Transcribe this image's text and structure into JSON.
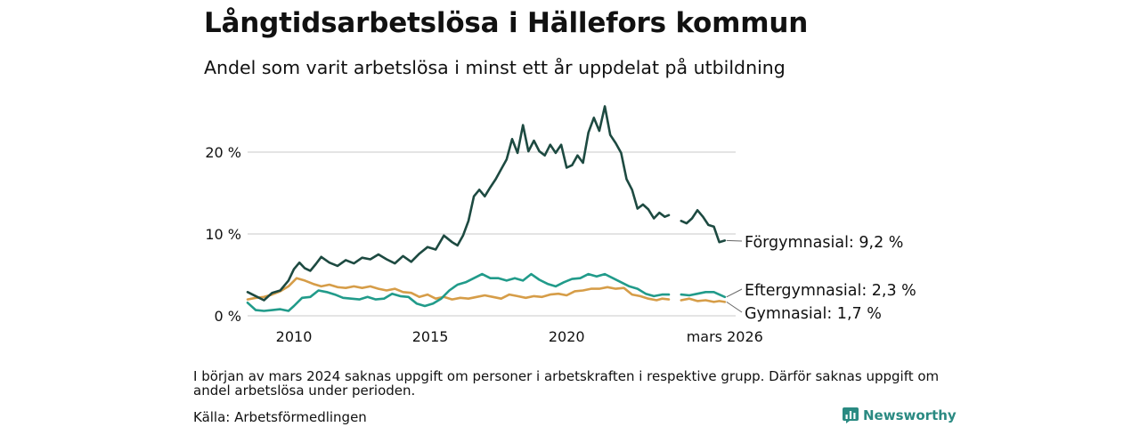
{
  "header": {
    "title": "Långtidsarbetslösa i Hällefors kommun",
    "subtitle": "Andel som varit arbetslösa i minst ett år uppdelat på utbildning"
  },
  "footer": {
    "note": "I början av mars 2024 saknas uppgift om personer i arbetskraften i respektive grupp. Därför saknas uppgift om andel arbetslösa under perioden.",
    "source": "Källa: Arbetsförmedlingen",
    "brand": "Newsworthy"
  },
  "colors": {
    "forgymnasial": "#1d4a41",
    "eftergymnasial": "#219b8a",
    "gymnasial": "#d69d48",
    "grid": "#dcdcdc",
    "brand": "#2a8a82"
  },
  "chart_data": {
    "type": "line",
    "x_range": [
      2008.3,
      2026.2
    ],
    "ylim": [
      0,
      25.5
    ],
    "yticks": [
      {
        "value": 0,
        "label": "0 %"
      },
      {
        "value": 10,
        "label": "10 %"
      },
      {
        "value": 20,
        "label": "20 %"
      }
    ],
    "xticks": [
      {
        "value": 2010,
        "label": "2010"
      },
      {
        "value": 2015,
        "label": "2015"
      },
      {
        "value": 2020,
        "label": "2020"
      },
      {
        "value": 2025.8,
        "label": "mars 2026"
      }
    ],
    "gap": [
      2023.75,
      2024.2
    ],
    "series": [
      {
        "name": "Förgymnasial",
        "color_key": "forgymnasial",
        "end_label": "Förgymnasial: 9,2 %",
        "points": [
          [
            2008.3,
            2.9
          ],
          [
            2008.6,
            2.4
          ],
          [
            2008.9,
            1.9
          ],
          [
            2009.2,
            2.8
          ],
          [
            2009.5,
            3.1
          ],
          [
            2009.8,
            4.3
          ],
          [
            2010.0,
            5.7
          ],
          [
            2010.2,
            6.5
          ],
          [
            2010.4,
            5.8
          ],
          [
            2010.6,
            5.5
          ],
          [
            2010.8,
            6.3
          ],
          [
            2011.0,
            7.2
          ],
          [
            2011.3,
            6.5
          ],
          [
            2011.6,
            6.1
          ],
          [
            2011.9,
            6.8
          ],
          [
            2012.2,
            6.4
          ],
          [
            2012.5,
            7.1
          ],
          [
            2012.8,
            6.9
          ],
          [
            2013.1,
            7.5
          ],
          [
            2013.4,
            6.9
          ],
          [
            2013.7,
            6.4
          ],
          [
            2014.0,
            7.3
          ],
          [
            2014.3,
            6.6
          ],
          [
            2014.6,
            7.6
          ],
          [
            2014.9,
            8.4
          ],
          [
            2015.2,
            8.1
          ],
          [
            2015.5,
            9.8
          ],
          [
            2015.8,
            9.0
          ],
          [
            2016.0,
            8.6
          ],
          [
            2016.2,
            9.8
          ],
          [
            2016.4,
            11.6
          ],
          [
            2016.6,
            14.6
          ],
          [
            2016.8,
            15.4
          ],
          [
            2017.0,
            14.6
          ],
          [
            2017.2,
            15.7
          ],
          [
            2017.4,
            16.7
          ],
          [
            2017.6,
            17.9
          ],
          [
            2017.8,
            19.1
          ],
          [
            2018.0,
            21.6
          ],
          [
            2018.2,
            19.9
          ],
          [
            2018.4,
            23.3
          ],
          [
            2018.6,
            20.1
          ],
          [
            2018.8,
            21.4
          ],
          [
            2019.0,
            20.1
          ],
          [
            2019.2,
            19.6
          ],
          [
            2019.4,
            20.9
          ],
          [
            2019.6,
            19.9
          ],
          [
            2019.8,
            20.9
          ],
          [
            2020.0,
            18.1
          ],
          [
            2020.2,
            18.4
          ],
          [
            2020.4,
            19.6
          ],
          [
            2020.6,
            18.7
          ],
          [
            2020.8,
            22.4
          ],
          [
            2021.0,
            24.2
          ],
          [
            2021.2,
            22.6
          ],
          [
            2021.4,
            25.6
          ],
          [
            2021.6,
            22.1
          ],
          [
            2021.8,
            21.1
          ],
          [
            2022.0,
            19.9
          ],
          [
            2022.2,
            16.7
          ],
          [
            2022.4,
            15.4
          ],
          [
            2022.6,
            13.1
          ],
          [
            2022.8,
            13.6
          ],
          [
            2023.0,
            13.0
          ],
          [
            2023.2,
            11.9
          ],
          [
            2023.4,
            12.6
          ],
          [
            2023.6,
            12.1
          ],
          [
            2023.75,
            12.3
          ],
          [
            2024.2,
            11.6
          ],
          [
            2024.4,
            11.3
          ],
          [
            2024.6,
            11.9
          ],
          [
            2024.8,
            12.9
          ],
          [
            2025.0,
            12.1
          ],
          [
            2025.2,
            11.1
          ],
          [
            2025.4,
            10.9
          ],
          [
            2025.6,
            9.0
          ],
          [
            2025.8,
            9.2
          ]
        ]
      },
      {
        "name": "Eftergymnasial",
        "color_key": "eftergymnasial",
        "end_label": "Eftergymnasial: 2,3 %",
        "points": [
          [
            2008.3,
            1.6
          ],
          [
            2008.6,
            0.7
          ],
          [
            2008.9,
            0.6
          ],
          [
            2009.2,
            0.7
          ],
          [
            2009.5,
            0.8
          ],
          [
            2009.8,
            0.6
          ],
          [
            2010.0,
            1.2
          ],
          [
            2010.3,
            2.2
          ],
          [
            2010.6,
            2.3
          ],
          [
            2010.9,
            3.1
          ],
          [
            2011.2,
            2.9
          ],
          [
            2011.5,
            2.6
          ],
          [
            2011.8,
            2.2
          ],
          [
            2012.1,
            2.1
          ],
          [
            2012.4,
            2.0
          ],
          [
            2012.7,
            2.3
          ],
          [
            2013.0,
            2.0
          ],
          [
            2013.3,
            2.1
          ],
          [
            2013.6,
            2.7
          ],
          [
            2013.9,
            2.4
          ],
          [
            2014.2,
            2.3
          ],
          [
            2014.5,
            1.5
          ],
          [
            2014.8,
            1.2
          ],
          [
            2015.1,
            1.5
          ],
          [
            2015.4,
            2.1
          ],
          [
            2015.7,
            3.1
          ],
          [
            2016.0,
            3.8
          ],
          [
            2016.3,
            4.1
          ],
          [
            2016.6,
            4.6
          ],
          [
            2016.9,
            5.1
          ],
          [
            2017.2,
            4.6
          ],
          [
            2017.5,
            4.6
          ],
          [
            2017.8,
            4.3
          ],
          [
            2018.1,
            4.6
          ],
          [
            2018.4,
            4.3
          ],
          [
            2018.7,
            5.1
          ],
          [
            2019.0,
            4.4
          ],
          [
            2019.3,
            3.9
          ],
          [
            2019.6,
            3.6
          ],
          [
            2019.9,
            4.1
          ],
          [
            2020.2,
            4.5
          ],
          [
            2020.5,
            4.6
          ],
          [
            2020.8,
            5.1
          ],
          [
            2021.1,
            4.8
          ],
          [
            2021.4,
            5.1
          ],
          [
            2021.7,
            4.6
          ],
          [
            2022.0,
            4.1
          ],
          [
            2022.3,
            3.6
          ],
          [
            2022.6,
            3.3
          ],
          [
            2022.9,
            2.7
          ],
          [
            2023.2,
            2.4
          ],
          [
            2023.5,
            2.6
          ],
          [
            2023.75,
            2.6
          ],
          [
            2024.2,
            2.6
          ],
          [
            2024.5,
            2.5
          ],
          [
            2024.8,
            2.7
          ],
          [
            2025.1,
            2.9
          ],
          [
            2025.4,
            2.9
          ],
          [
            2025.6,
            2.6
          ],
          [
            2025.8,
            2.3
          ]
        ]
      },
      {
        "name": "Gymnasial",
        "color_key": "gymnasial",
        "end_label": "Gymnasial: 1,7 %",
        "points": [
          [
            2008.3,
            2.0
          ],
          [
            2008.6,
            2.2
          ],
          [
            2008.9,
            2.3
          ],
          [
            2009.2,
            2.6
          ],
          [
            2009.5,
            3.0
          ],
          [
            2009.8,
            3.6
          ],
          [
            2010.1,
            4.6
          ],
          [
            2010.4,
            4.3
          ],
          [
            2010.7,
            3.9
          ],
          [
            2011.0,
            3.6
          ],
          [
            2011.3,
            3.8
          ],
          [
            2011.6,
            3.5
          ],
          [
            2011.9,
            3.4
          ],
          [
            2012.2,
            3.6
          ],
          [
            2012.5,
            3.4
          ],
          [
            2012.8,
            3.6
          ],
          [
            2013.1,
            3.3
          ],
          [
            2013.4,
            3.1
          ],
          [
            2013.7,
            3.3
          ],
          [
            2014.0,
            2.9
          ],
          [
            2014.3,
            2.8
          ],
          [
            2014.6,
            2.3
          ],
          [
            2014.9,
            2.6
          ],
          [
            2015.2,
            2.1
          ],
          [
            2015.5,
            2.3
          ],
          [
            2015.8,
            2.0
          ],
          [
            2016.1,
            2.2
          ],
          [
            2016.4,
            2.1
          ],
          [
            2016.7,
            2.3
          ],
          [
            2017.0,
            2.5
          ],
          [
            2017.3,
            2.3
          ],
          [
            2017.6,
            2.1
          ],
          [
            2017.9,
            2.6
          ],
          [
            2018.2,
            2.4
          ],
          [
            2018.5,
            2.2
          ],
          [
            2018.8,
            2.4
          ],
          [
            2019.1,
            2.3
          ],
          [
            2019.4,
            2.6
          ],
          [
            2019.7,
            2.7
          ],
          [
            2020.0,
            2.5
          ],
          [
            2020.3,
            3.0
          ],
          [
            2020.6,
            3.1
          ],
          [
            2020.9,
            3.3
          ],
          [
            2021.2,
            3.3
          ],
          [
            2021.5,
            3.5
          ],
          [
            2021.8,
            3.3
          ],
          [
            2022.1,
            3.4
          ],
          [
            2022.4,
            2.6
          ],
          [
            2022.7,
            2.4
          ],
          [
            2023.0,
            2.1
          ],
          [
            2023.3,
            1.9
          ],
          [
            2023.5,
            2.1
          ],
          [
            2023.75,
            2.0
          ],
          [
            2024.2,
            1.9
          ],
          [
            2024.5,
            2.1
          ],
          [
            2024.8,
            1.8
          ],
          [
            2025.1,
            1.9
          ],
          [
            2025.4,
            1.7
          ],
          [
            2025.6,
            1.8
          ],
          [
            2025.8,
            1.7
          ]
        ]
      }
    ]
  }
}
